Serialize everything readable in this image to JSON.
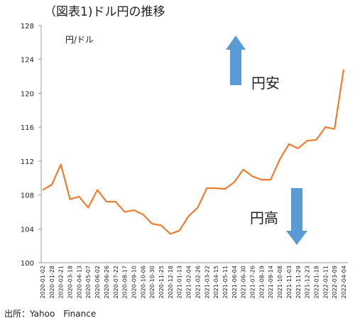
{
  "chart_data": {
    "type": "line",
    "title": "（図表1)ドル円の推移",
    "y_label": "円/ドル",
    "annotations": [
      "円安",
      "円高"
    ],
    "source": "出所：Yahoo　Finance",
    "categories": [
      "2020-01-02",
      "2020-01-28",
      "2020-02-21",
      "2020-03-18",
      "2020-04-13",
      "2020-05-07",
      "2020-06-02",
      "2020-06-26",
      "2020-07-22",
      "2020-08-17",
      "2020-09-10",
      "2020-10-06",
      "2020-10-30",
      "2020-11-25",
      "2020-12-18",
      "2021-01-13",
      "2021-02-04",
      "2021-02-26",
      "2021-03-22",
      "2021-04-15",
      "2021-05-11",
      "2021-06-04",
      "2021-06-30",
      "2021-07-26",
      "2021-08-19",
      "2021-09-14",
      "2021-10-08",
      "2021-11-03",
      "2021-11-29",
      "2021-12-23",
      "2022-01-18",
      "2022-02-11",
      "2022-03-09",
      "2022-04-04"
    ],
    "series": [
      {
        "name": "ドル円",
        "color": "#ed7d31",
        "values": [
          108.6,
          109.2,
          111.6,
          107.5,
          107.8,
          106.5,
          108.6,
          107.2,
          107.2,
          106.0,
          106.2,
          105.7,
          104.6,
          104.4,
          103.4,
          103.8,
          105.5,
          106.5,
          108.8,
          108.8,
          108.7,
          109.5,
          111.0,
          110.2,
          109.8,
          109.8,
          112.2,
          114.0,
          113.5,
          114.4,
          114.5,
          116.0,
          115.8,
          122.8
        ]
      }
    ],
    "ylim": [
      100,
      128
    ],
    "yticks": [
      100,
      104,
      108,
      112,
      116,
      120,
      124,
      128
    ],
    "grid": false
  }
}
